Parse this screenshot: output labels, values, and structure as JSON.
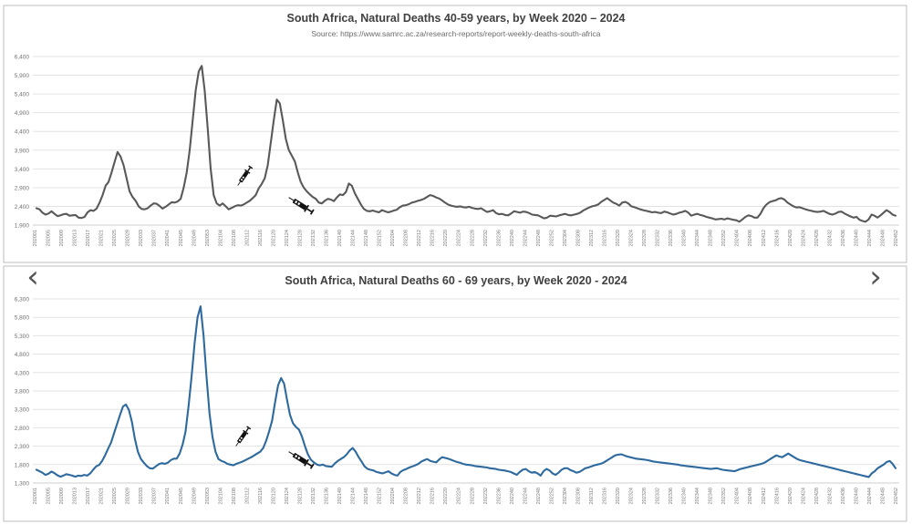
{
  "nav": {
    "prev_icon": "‹",
    "next_icon": "›"
  },
  "chart_data": [
    {
      "type": "line",
      "title": "South Africa, Natural Deaths 40-59 years, by Week 2020 – 2024",
      "subtitle": "Source: https://www.samrc.ac.za/research-reports/report-weekly-deaths-south-africa",
      "ylim": [
        1900,
        6400
      ],
      "yticks": [
        "1,900",
        "2,400",
        "2,900",
        "3,400",
        "3,900",
        "4,400",
        "4,900",
        "5,400",
        "5,900",
        "6,400"
      ],
      "xticks": [
        "202001",
        "202005",
        "202009",
        "202013",
        "202017",
        "202021",
        "202025",
        "202029",
        "202033",
        "202037",
        "202041",
        "202045",
        "202049",
        "202053",
        "202104",
        "202108",
        "202112",
        "202116",
        "202120",
        "202124",
        "202128",
        "202132",
        "202136",
        "202140",
        "202144",
        "202148",
        "202152",
        "202204",
        "202208",
        "202212",
        "202216",
        "202220",
        "202224",
        "202228",
        "202232",
        "202236",
        "202240",
        "202244",
        "202248",
        "202252",
        "202304",
        "202308",
        "202312",
        "202316",
        "202320",
        "202324",
        "202328",
        "202332",
        "202336",
        "202340",
        "202344",
        "202348",
        "202352",
        "202404",
        "202408",
        "202412",
        "202416",
        "202420",
        "202424",
        "202428",
        "202432",
        "202436",
        "202440",
        "202444",
        "202448",
        "202452"
      ],
      "line_color": "#595959",
      "grid": true,
      "annotations": [
        "syringe-icon",
        "syringe-icon"
      ],
      "series": [
        {
          "values": [
            2350,
            2320,
            2230,
            2180,
            2210,
            2270,
            2200,
            2140,
            2160,
            2190,
            2200,
            2150,
            2160,
            2170,
            2100,
            2090,
            2120,
            2240,
            2300,
            2280,
            2340,
            2500,
            2700,
            2950,
            3050,
            3300,
            3580,
            3850,
            3730,
            3500,
            3150,
            2800,
            2650,
            2550,
            2400,
            2330,
            2320,
            2350,
            2420,
            2480,
            2470,
            2410,
            2340,
            2390,
            2450,
            2510,
            2500,
            2530,
            2600,
            2900,
            3300,
            3900,
            4700,
            5500,
            6000,
            6150,
            5500,
            4500,
            3400,
            2700,
            2480,
            2420,
            2480,
            2400,
            2320,
            2360,
            2400,
            2430,
            2420,
            2450,
            2500,
            2550,
            2620,
            2700,
            2880,
            3000,
            3150,
            3500,
            4100,
            4700,
            5250,
            5150,
            4700,
            4200,
            3900,
            3750,
            3600,
            3300,
            3050,
            2900,
            2800,
            2720,
            2650,
            2600,
            2500,
            2480,
            2550,
            2600,
            2580,
            2540,
            2640,
            2720,
            2700,
            2780,
            3010,
            2950,
            2750,
            2600,
            2450,
            2330,
            2280,
            2270,
            2290,
            2260,
            2240,
            2300,
            2270,
            2240,
            2260,
            2290,
            2310,
            2380,
            2420,
            2430,
            2460,
            2500,
            2520,
            2550,
            2570,
            2600,
            2650,
            2700,
            2680,
            2640,
            2610,
            2560,
            2500,
            2450,
            2420,
            2400,
            2390,
            2400,
            2380,
            2370,
            2390,
            2360,
            2340,
            2330,
            2350,
            2300,
            2250,
            2270,
            2300,
            2220,
            2190,
            2200,
            2170,
            2160,
            2210,
            2270,
            2250,
            2230,
            2260,
            2250,
            2220,
            2180,
            2170,
            2160,
            2120,
            2080,
            2100,
            2150,
            2140,
            2130,
            2160,
            2180,
            2200,
            2170,
            2160,
            2180,
            2200,
            2230,
            2290,
            2330,
            2370,
            2400,
            2420,
            2450,
            2520,
            2570,
            2620,
            2560,
            2500,
            2470,
            2420,
            2500,
            2520,
            2480,
            2400,
            2380,
            2350,
            2320,
            2300,
            2280,
            2260,
            2240,
            2250,
            2230,
            2220,
            2260,
            2240,
            2210,
            2180,
            2200,
            2230,
            2250,
            2280,
            2230,
            2150,
            2180,
            2200,
            2170,
            2150,
            2120,
            2100,
            2080,
            2050,
            2060,
            2070,
            2050,
            2080,
            2060,
            2040,
            2030,
            1990,
            2050,
            2120,
            2160,
            2140,
            2100,
            2100,
            2200,
            2350,
            2450,
            2510,
            2540,
            2560,
            2600,
            2620,
            2580,
            2500,
            2450,
            2400,
            2370,
            2380,
            2350,
            2320,
            2300,
            2280,
            2260,
            2250,
            2260,
            2280,
            2240,
            2200,
            2180,
            2210,
            2250,
            2260,
            2210,
            2170,
            2130,
            2100,
            2120,
            2040,
            2010,
            1990,
            2050,
            2180,
            2150,
            2100,
            2160,
            2230,
            2300,
            2250,
            2180,
            2150
          ]
        }
      ]
    },
    {
      "type": "line",
      "title": "South Africa, Natural Deaths 60 - 69 years, by Week 2020 - 2024",
      "ylim": [
        1300,
        6300
      ],
      "yticks": [
        "1,300",
        "1,800",
        "2,300",
        "2,800",
        "3,300",
        "3,800",
        "4,300",
        "4,800",
        "5,300",
        "5,800",
        "6,300"
      ],
      "xticks": [
        "202001",
        "202005",
        "202009",
        "202013",
        "202017",
        "202021",
        "202025",
        "202029",
        "202033",
        "202037",
        "202041",
        "202045",
        "202049",
        "202053",
        "202104",
        "202108",
        "202112",
        "202116",
        "202120",
        "202124",
        "202128",
        "202132",
        "202136",
        "202140",
        "202144",
        "202148",
        "202152",
        "202204",
        "202208",
        "202212",
        "202216",
        "202220",
        "202224",
        "202228",
        "202232",
        "202236",
        "202240",
        "202244",
        "202248",
        "202252",
        "202304",
        "202308",
        "202312",
        "202316",
        "202320",
        "202324",
        "202328",
        "202332",
        "202336",
        "202340",
        "202344",
        "202348",
        "202352",
        "202404",
        "202408",
        "202412",
        "202416",
        "202420",
        "202424",
        "202428",
        "202432",
        "202436",
        "202440",
        "202444",
        "202448",
        "202452"
      ],
      "line_color": "#2e6a9e",
      "grid": true,
      "annotations": [
        "syringe-icon",
        "syringe-icon"
      ],
      "series": [
        {
          "values": [
            1660,
            1620,
            1580,
            1520,
            1550,
            1610,
            1570,
            1510,
            1470,
            1500,
            1540,
            1520,
            1500,
            1470,
            1500,
            1490,
            1520,
            1500,
            1560,
            1660,
            1750,
            1790,
            1900,
            2050,
            2230,
            2400,
            2650,
            2900,
            3150,
            3380,
            3430,
            3280,
            2950,
            2500,
            2150,
            1950,
            1850,
            1760,
            1700,
            1690,
            1750,
            1810,
            1840,
            1820,
            1850,
            1920,
            1960,
            1960,
            2100,
            2350,
            2700,
            3400,
            4200,
            5100,
            5800,
            6100,
            5300,
            4200,
            3200,
            2550,
            2150,
            1950,
            1900,
            1870,
            1820,
            1800,
            1780,
            1820,
            1850,
            1880,
            1920,
            1960,
            2000,
            2050,
            2100,
            2150,
            2250,
            2450,
            2700,
            3000,
            3500,
            3950,
            4150,
            4000,
            3550,
            3150,
            2920,
            2820,
            2750,
            2560,
            2300,
            2080,
            1930,
            1860,
            1800,
            1780,
            1800,
            1760,
            1750,
            1740,
            1830,
            1900,
            1950,
            2000,
            2080,
            2180,
            2250,
            2150,
            2000,
            1880,
            1750,
            1680,
            1660,
            1640,
            1600,
            1580,
            1560,
            1590,
            1620,
            1560,
            1520,
            1500,
            1600,
            1650,
            1680,
            1720,
            1750,
            1780,
            1820,
            1880,
            1920,
            1950,
            1900,
            1880,
            1860,
            1940,
            2000,
            1980,
            1960,
            1930,
            1900,
            1870,
            1850,
            1820,
            1800,
            1790,
            1780,
            1760,
            1750,
            1740,
            1730,
            1720,
            1700,
            1690,
            1680,
            1660,
            1650,
            1640,
            1620,
            1600,
            1560,
            1520,
            1600,
            1660,
            1680,
            1620,
            1580,
            1600,
            1560,
            1500,
            1620,
            1680,
            1640,
            1560,
            1520,
            1580,
            1660,
            1700,
            1700,
            1650,
            1620,
            1580,
            1600,
            1650,
            1700,
            1720,
            1750,
            1780,
            1800,
            1820,
            1850,
            1900,
            1950,
            2000,
            2050,
            2070,
            2080,
            2050,
            2020,
            2000,
            1980,
            1960,
            1950,
            1940,
            1930,
            1920,
            1900,
            1880,
            1870,
            1860,
            1850,
            1840,
            1830,
            1820,
            1810,
            1800,
            1780,
            1770,
            1760,
            1750,
            1740,
            1730,
            1720,
            1710,
            1700,
            1690,
            1680,
            1690,
            1700,
            1680,
            1660,
            1650,
            1640,
            1630,
            1620,
            1650,
            1680,
            1700,
            1720,
            1740,
            1760,
            1780,
            1800,
            1820,
            1850,
            1900,
            1950,
            2000,
            2050,
            2020,
            2000,
            2050,
            2100,
            2050,
            2000,
            1950,
            1920,
            1900,
            1880,
            1860,
            1840,
            1820,
            1800,
            1780,
            1760,
            1740,
            1720,
            1700,
            1680,
            1660,
            1640,
            1620,
            1600,
            1580,
            1560,
            1540,
            1520,
            1500,
            1480,
            1460,
            1560,
            1620,
            1700,
            1750,
            1800,
            1870,
            1900,
            1820,
            1700
          ]
        }
      ]
    }
  ]
}
